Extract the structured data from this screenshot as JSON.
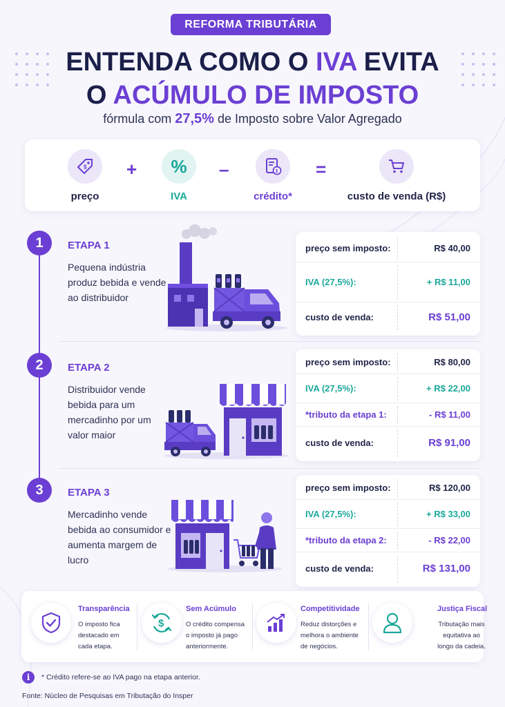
{
  "header": {
    "badge": "REFORMA TRIBUTÁRIA",
    "title_line1_a": "ENTENDA COMO O ",
    "title_line1_accent": "IVA",
    "title_line1_b": " EVITA",
    "title_line2_a": "O ",
    "title_line2_accent": "ACÚMULO DE IMPOSTO",
    "subtitle_a": "fórmula com ",
    "subtitle_accent": "27,5%",
    "subtitle_b": " de Imposto sobre Valor Agregado"
  },
  "formula": {
    "items": [
      {
        "label": "preço",
        "icon": "price-tag-icon"
      },
      {
        "label": "IVA",
        "icon": "percent-icon"
      },
      {
        "label": "crédito*",
        "icon": "receipt-icon"
      },
      {
        "label": "custo de venda (R$)",
        "icon": "cart-icon"
      }
    ],
    "operators": [
      "+",
      "–",
      "="
    ]
  },
  "steps": [
    {
      "number": "1",
      "title": "ETAPA 1",
      "description": "Pequena indústria produz bebida e vende ao distribuidor",
      "rows": [
        {
          "label": "preço sem imposto:",
          "value": "R$ 40,00"
        },
        {
          "label": "IVA (27,5%):",
          "value": "+ R$ 11,00"
        },
        {
          "label": "custo de venda:",
          "value": "R$ 51,00"
        }
      ]
    },
    {
      "number": "2",
      "title": "ETAPA 2",
      "description": "Distribuidor vende bebida para um mercadinho por um valor maior",
      "rows": [
        {
          "label": "preço sem imposto:",
          "value": "R$ 80,00"
        },
        {
          "label": "IVA (27,5%):",
          "value": "+ R$ 22,00"
        },
        {
          "label": "*tributo da etapa 1:",
          "value": "- R$ 11,00"
        },
        {
          "label": "custo de venda:",
          "value": "R$ 91,00"
        }
      ]
    },
    {
      "number": "3",
      "title": "ETAPA 3",
      "description": "Mercadinho vende bebida ao consumidor e aumenta margem de lucro",
      "rows": [
        {
          "label": "preço sem imposto:",
          "value": "R$ 120,00"
        },
        {
          "label": "IVA (27,5%):",
          "value": "+ R$ 33,00"
        },
        {
          "label": "*tributo da etapa 2:",
          "value": "- R$ 22,00"
        },
        {
          "label": "custo de venda:",
          "value": "R$ 131,00"
        }
      ]
    }
  ],
  "benefits": [
    {
      "title": "Transparência",
      "text": "O imposto fica destacado em cada etapa.",
      "icon": "shield-check-icon"
    },
    {
      "title": "Sem Acúmulo",
      "text": "O crédito compensa o imposto já pago anteriormente.",
      "icon": "dollar-cycle-icon"
    },
    {
      "title": "Competitividade",
      "text": "Reduz distorções e melhora o ambiente de negócios.",
      "icon": "growth-chart-icon"
    },
    {
      "title": "Justiça Fiscal",
      "text": "Tributação mais equitativa ao longo da cadeia.",
      "icon": "person-icon"
    }
  ],
  "footer": {
    "note": "* Crédito refere-se ao IVA pago na etapa anterior.",
    "source": "Fonte: Núcleo de Pesquisas em Tributação do Insper"
  },
  "colors": {
    "accent": "#6b3fd3",
    "green": "#1aa89a",
    "text": "#1f2347",
    "background": "#f7f6fc"
  }
}
